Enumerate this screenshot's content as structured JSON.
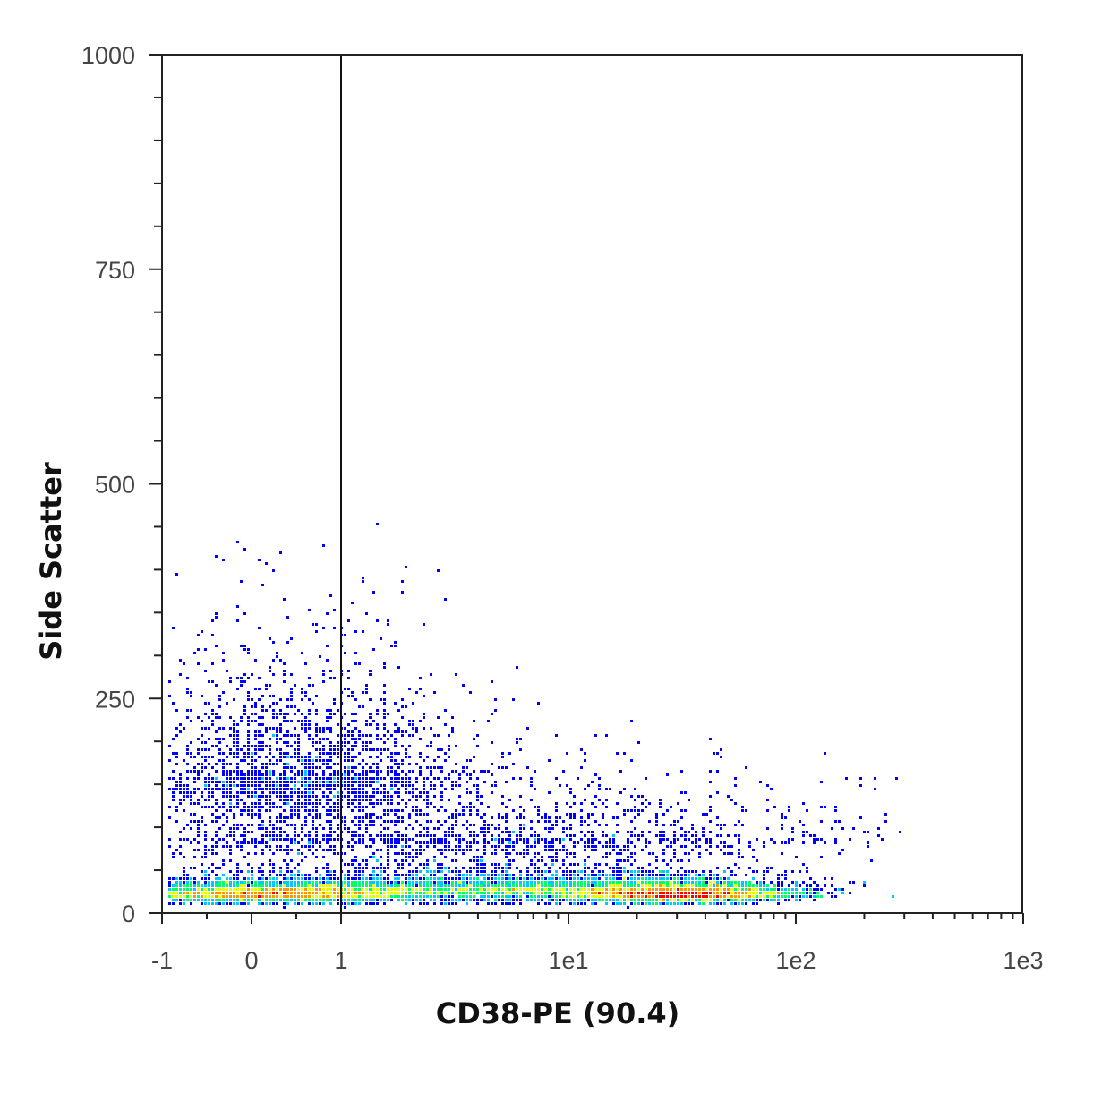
{
  "chart_data": {
    "type": "scatter",
    "style": "density-dot-plot",
    "xlabel": "CD38-PE (90.4)",
    "ylabel": "Side Scatter",
    "x_scale": "biexponential",
    "x_ticks": [
      "-1",
      "0",
      "1",
      "1e1",
      "1e2",
      "1e3"
    ],
    "y_ticks": [
      "0",
      "250",
      "500",
      "750",
      "1000"
    ],
    "xlim": [
      -1,
      1000
    ],
    "ylim": [
      0,
      1000
    ],
    "gate": {
      "type": "vertical-line",
      "x": 1
    },
    "grid": false,
    "legend": "none",
    "colormap": [
      "#0000ff",
      "#00c8ff",
      "#00ff64",
      "#e6ff00",
      "#ff9600",
      "#ff0000"
    ],
    "populations": [
      {
        "x_center": 0.15,
        "y_center": 22,
        "x_spread_decades": 0.35,
        "y_spread": 8,
        "weight": 0.3
      },
      {
        "x_center": 30,
        "y_center": 22,
        "x_spread_decades": 0.25,
        "y_spread": 8,
        "weight": 0.32
      },
      {
        "x_center": 5,
        "y_center": 28,
        "x_spread_decades": 0.55,
        "y_spread": 12,
        "weight": 0.23
      },
      {
        "x_center": 0.5,
        "y_center": 160,
        "x_spread_decades": 0.35,
        "y_spread": 70,
        "weight": 0.09
      },
      {
        "x_center": 4,
        "y_center": 90,
        "x_spread_decades": 0.8,
        "y_spread": 40,
        "weight": 0.06
      }
    ]
  }
}
